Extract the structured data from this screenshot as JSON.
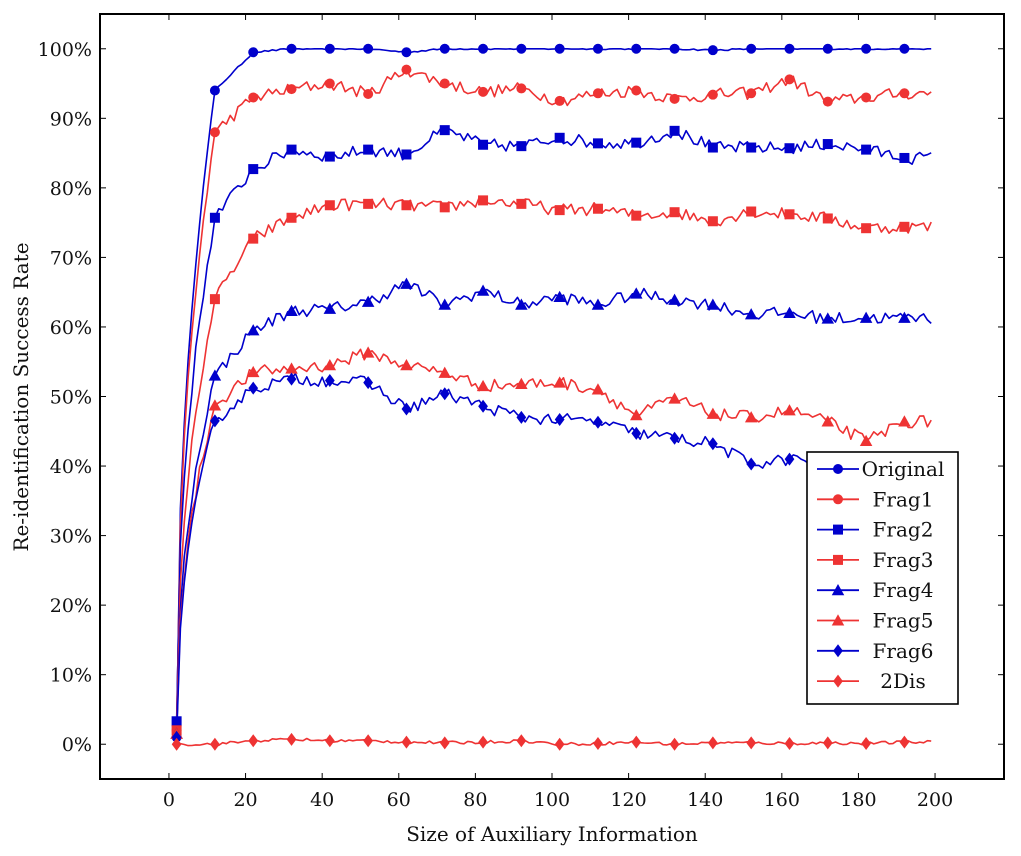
{
  "chart_data": {
    "type": "line",
    "title": "",
    "xlabel": "Size of Auxiliary Information",
    "ylabel": "Re-identification Success Rate",
    "xlim": [
      -18,
      218
    ],
    "ylim": [
      -5,
      105
    ],
    "xticks": [
      0,
      20,
      40,
      60,
      80,
      100,
      120,
      140,
      160,
      180,
      200
    ],
    "xtick_labels": [
      "0",
      "20",
      "40",
      "60",
      "80",
      "100",
      "120",
      "140",
      "160",
      "180",
      "200"
    ],
    "yticks": [
      0,
      10,
      20,
      30,
      40,
      50,
      60,
      70,
      80,
      90,
      100
    ],
    "ytick_labels": [
      "0%",
      "10%",
      "20%",
      "30%",
      "40%",
      "50%",
      "60%",
      "70%",
      "80%",
      "90%",
      "100%"
    ],
    "grid": false,
    "legend_position": "lower-right",
    "x": [
      2,
      12,
      22,
      32,
      42,
      52,
      62,
      72,
      82,
      92,
      102,
      112,
      122,
      132,
      142,
      152,
      162,
      172,
      182,
      192
    ],
    "series": [
      {
        "name": "Original",
        "color": "#0000cc",
        "marker": "circle",
        "values": [
          1,
          94,
          99.5,
          100,
          100,
          100,
          99.5,
          100,
          100,
          100,
          100,
          100,
          100,
          100,
          99.8,
          100,
          100,
          100,
          100,
          100
        ]
      },
      {
        "name": "Frag1",
        "color": "#ee3333",
        "marker": "circle",
        "values": [
          2,
          88,
          93,
          94.2,
          95,
          93.5,
          97,
          95,
          93.8,
          94.3,
          92.5,
          93.6,
          94,
          92.8,
          93.4,
          93.6,
          95.6,
          92.4,
          93,
          93.6
        ]
      },
      {
        "name": "Frag2",
        "color": "#0000cc",
        "marker": "square",
        "values": [
          3.3,
          75.7,
          82.7,
          85.5,
          84.5,
          85.5,
          84.8,
          88.3,
          86.2,
          86,
          87.2,
          86.4,
          86.5,
          88.2,
          85.8,
          85.8,
          85.7,
          86.3,
          85.5,
          84.3
        ]
      },
      {
        "name": "Frag3",
        "color": "#ee3333",
        "marker": "square",
        "values": [
          2,
          64,
          72.7,
          75.7,
          77.5,
          77.7,
          77.5,
          77.2,
          78.2,
          77.7,
          76.8,
          77,
          76,
          76.5,
          75.2,
          76.6,
          76.2,
          75.6,
          74.2,
          74.4
        ]
      },
      {
        "name": "Frag4",
        "color": "#0000cc",
        "marker": "triangle",
        "values": [
          1.5,
          53,
          59.5,
          62.3,
          62.6,
          63.6,
          66.2,
          63.2,
          65.2,
          63.2,
          64.3,
          63.2,
          64.8,
          63.9,
          63.2,
          61.8,
          62,
          61.2,
          61.3,
          61.3
        ]
      },
      {
        "name": "Frag5",
        "color": "#ee3333",
        "marker": "triangle",
        "values": [
          1.5,
          48.7,
          53.5,
          54,
          54.5,
          56.3,
          54.5,
          53.4,
          51.5,
          51.8,
          52,
          51,
          47.3,
          49.7,
          47.5,
          47,
          48,
          46.4,
          43.6,
          46.4
        ]
      },
      {
        "name": "Frag6",
        "color": "#0000cc",
        "marker": "diamond",
        "values": [
          1,
          46.5,
          51.2,
          52.5,
          52.3,
          52,
          48.2,
          50.4,
          48.6,
          47,
          46.7,
          46.3,
          44.7,
          44,
          43.2,
          40.3,
          41,
          40.5,
          40.3,
          40.5
        ]
      },
      {
        "name": "2Dis",
        "color": "#ee3333",
        "marker": "diamond",
        "values": [
          0,
          0,
          0.5,
          0.7,
          0.5,
          0.5,
          0.3,
          0.2,
          0.3,
          0.5,
          0,
          0.1,
          0.3,
          0,
          0.2,
          0.2,
          0.1,
          0.2,
          0.1,
          0.3
        ]
      }
    ]
  }
}
